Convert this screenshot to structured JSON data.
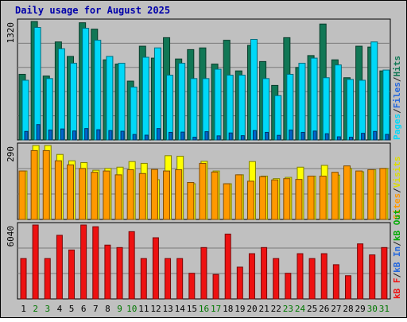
{
  "chart_data": [
    {
      "type": "bar",
      "title": "Daily usage for August 2025",
      "panel": "top",
      "ylabel_top_tick": "1320",
      "categories": [
        "1",
        "2",
        "3",
        "4",
        "5",
        "6",
        "7",
        "8",
        "9",
        "10",
        "11",
        "12",
        "13",
        "14",
        "15",
        "16",
        "17",
        "18",
        "19",
        "20",
        "21",
        "22",
        "23",
        "24",
        "25",
        "26",
        "27",
        "28",
        "29",
        "30",
        "31"
      ],
      "series": [
        {
          "name": "Pages",
          "values": [
            100,
            180,
            116,
            129,
            105,
            134,
            120,
            110,
            102,
            64,
            56,
            134,
            89,
            92,
            32,
            97,
            48,
            82,
            50,
            110,
            89,
            54,
            116,
            89,
            104,
            73,
            37,
            32,
            78,
            100,
            65
          ]
        },
        {
          "name": "Files",
          "values": [
            700,
            1320,
            720,
            1070,
            900,
            1310,
            1170,
            980,
            900,
            620,
            970,
            1080,
            760,
            900,
            720,
            720,
            830,
            760,
            760,
            1180,
            720,
            520,
            770,
            900,
            960,
            730,
            880,
            710,
            700,
            1150,
            820
          ]
        },
        {
          "name": "Hits",
          "values": [
            770,
            1390,
            750,
            1150,
            980,
            1375,
            1300,
            940,
            890,
            690,
            1100,
            960,
            1200,
            950,
            1060,
            1080,
            890,
            1170,
            810,
            1110,
            920,
            640,
            1200,
            850,
            990,
            1360,
            940,
            730,
            1100,
            1090,
            810
          ]
        }
      ],
      "colors": {
        "Pages": "#0066cc",
        "Files": "#00d8f8",
        "Hits": "#117755"
      }
    },
    {
      "type": "bar",
      "panel": "middle",
      "ylabel_top_tick": "290",
      "categories": [
        "1",
        "2",
        "3",
        "4",
        "5",
        "6",
        "7",
        "8",
        "9",
        "10",
        "11",
        "12",
        "13",
        "14",
        "15",
        "16",
        "17",
        "18",
        "19",
        "20",
        "21",
        "22",
        "23",
        "24",
        "25",
        "26",
        "27",
        "28",
        "29",
        "30",
        "31"
      ],
      "series": [
        {
          "name": "Sites",
          "values": [
            190,
            270,
            270,
            230,
            214,
            200,
            185,
            190,
            175,
            195,
            180,
            196,
            190,
            195,
            145,
            220,
            186,
            140,
            175,
            150,
            168,
            155,
            160,
            157,
            170,
            170,
            185,
            210,
            190,
            195,
            200
          ]
        },
        {
          "name": "Visits",
          "values": [
            190,
            290,
            290,
            255,
            230,
            223,
            193,
            200,
            205,
            227,
            220,
            156,
            250,
            248,
            140,
            228,
            190,
            140,
            175,
            227,
            170,
            160,
            165,
            205,
            170,
            212,
            174,
            200,
            187,
            195,
            200
          ]
        }
      ],
      "colors": {
        "Sites": "#ff9900",
        "Visits": "#ffff00"
      }
    },
    {
      "type": "bar",
      "panel": "bottom",
      "ylabel_top_tick": "6040",
      "categories": [
        "1",
        "2",
        "3",
        "4",
        "5",
        "6",
        "7",
        "8",
        "9",
        "10",
        "11",
        "12",
        "13",
        "14",
        "15",
        "16",
        "17",
        "18",
        "19",
        "20",
        "21",
        "22",
        "23",
        "24",
        "25",
        "26",
        "27",
        "28",
        "29",
        "30",
        "31"
      ],
      "series": [
        {
          "name": "kB F",
          "values": [
            3300,
            6040,
            3300,
            5200,
            4000,
            6040,
            5900,
            4400,
            4200,
            5500,
            3300,
            5000,
            3300,
            3300,
            2100,
            4200,
            2000,
            5300,
            2600,
            3700,
            4200,
            3300,
            2100,
            3700,
            3300,
            3700,
            2800,
            1900,
            4500,
            3600,
            4200
          ]
        }
      ],
      "colors": {
        "kB F": "#ee1111"
      }
    }
  ],
  "header": {
    "title": "Daily usage for August 2025",
    "title_color": "#0000aa"
  },
  "ticks": {
    "top": "1320",
    "middle": "290",
    "bottom": "6040"
  },
  "legend": {
    "top": [
      {
        "text": "Pages",
        "color": "#00d8f8"
      },
      {
        "text": "/",
        "color": "#222222"
      },
      {
        "text": "Files",
        "color": "#2266dd"
      },
      {
        "text": "/",
        "color": "#222222"
      },
      {
        "text": "Hits",
        "color": "#117755"
      }
    ],
    "middle": [
      {
        "text": "Sites",
        "color": "#ff9900"
      },
      {
        "text": "/",
        "color": "#222222"
      },
      {
        "text": "Visits",
        "color": "#dddd00"
      }
    ],
    "bottom": [
      {
        "text": "kB F",
        "color": "#ee1111"
      },
      {
        "text": "/",
        "color": "#222222"
      },
      {
        "text": "kB In",
        "color": "#2266dd"
      },
      {
        "text": "/",
        "color": "#222222"
      },
      {
        "text": "kB Out",
        "color": "#00aa00"
      }
    ]
  },
  "xaxis": {
    "labels": [
      "1",
      "2",
      "3",
      "4",
      "5",
      "6",
      "7",
      "8",
      "9",
      "10",
      "11",
      "12",
      "13",
      "14",
      "15",
      "16",
      "17",
      "18",
      "19",
      "20",
      "21",
      "22",
      "23",
      "24",
      "25",
      "26",
      "27",
      "28",
      "29",
      "30",
      "31"
    ],
    "weekend_days": [
      "2",
      "3",
      "9",
      "10",
      "16",
      "17",
      "23",
      "24",
      "30",
      "31"
    ],
    "weekday_color": "#000000",
    "weekend_color": "#007700"
  }
}
